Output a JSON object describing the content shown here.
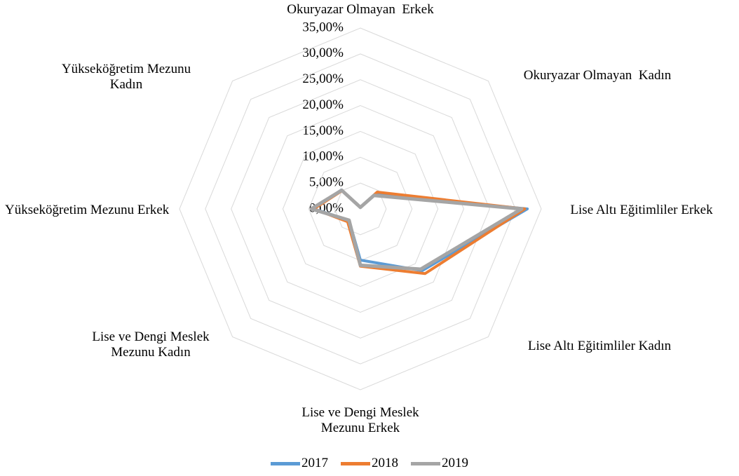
{
  "chart_data": {
    "type": "radar",
    "categories": [
      "Okuryazar Olmayan  Erkek",
      "Okuryazar Olmayan  Kadın",
      "Lise Altı Eğitimliler Erkek",
      "Lise Altı Eğitimliler Kadın",
      "Lise ve Dengi Meslek Mezunu Erkek",
      "Lise ve Dengi Meslek Mezunu Kadın",
      "Yükseköğretim Mezunu Erkek",
      "Yükseköğretim Mezunu Kadın"
    ],
    "series": [
      {
        "name": "2017",
        "color": "#5b9bd5",
        "values": [
          0.3,
          4.0,
          32.3,
          16.9,
          9.9,
          3.1,
          9.0,
          5.2
        ]
      },
      {
        "name": "2018",
        "color": "#ed7d31",
        "values": [
          0.3,
          4.6,
          31.8,
          17.7,
          11.1,
          3.5,
          9.0,
          5.0
        ]
      },
      {
        "name": "2019",
        "color": "#a5a5a5",
        "values": [
          0.3,
          3.7,
          31.2,
          16.5,
          10.9,
          3.1,
          9.5,
          5.1
        ]
      }
    ],
    "ylim": [
      0,
      35
    ],
    "yticks": [
      {
        "value": 0,
        "label": "0,00%"
      },
      {
        "value": 5,
        "label": "5,00%"
      },
      {
        "value": 10,
        "label": "10,00%"
      },
      {
        "value": 15,
        "label": "15,00%"
      },
      {
        "value": 20,
        "label": "20,00%"
      },
      {
        "value": 25,
        "label": "25,00%"
      },
      {
        "value": 30,
        "label": "30,00%"
      },
      {
        "value": 35,
        "label": "35,00%"
      }
    ],
    "grid": true,
    "legend": "bottom"
  }
}
